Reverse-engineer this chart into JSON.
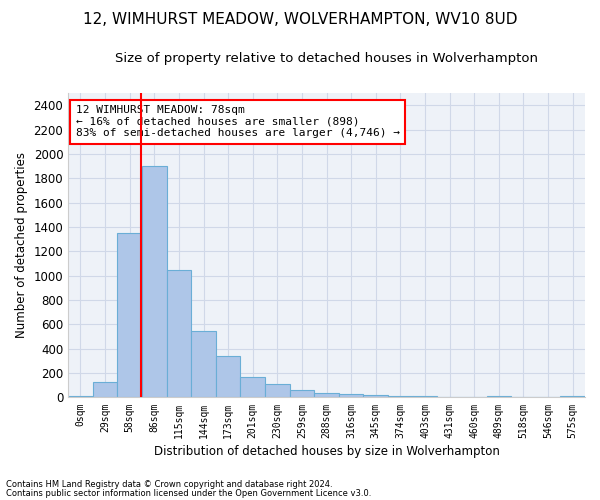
{
  "title": "12, WIMHURST MEADOW, WOLVERHAMPTON, WV10 8UD",
  "subtitle": "Size of property relative to detached houses in Wolverhampton",
  "xlabel": "Distribution of detached houses by size in Wolverhampton",
  "ylabel": "Number of detached properties",
  "footer_line1": "Contains HM Land Registry data © Crown copyright and database right 2024.",
  "footer_line2": "Contains public sector information licensed under the Open Government Licence v3.0.",
  "bar_labels": [
    "0sqm",
    "29sqm",
    "58sqm",
    "86sqm",
    "115sqm",
    "144sqm",
    "173sqm",
    "201sqm",
    "230sqm",
    "259sqm",
    "288sqm",
    "316sqm",
    "345sqm",
    "374sqm",
    "403sqm",
    "431sqm",
    "460sqm",
    "489sqm",
    "518sqm",
    "546sqm",
    "575sqm"
  ],
  "bar_values": [
    15,
    125,
    1350,
    1900,
    1045,
    545,
    340,
    170,
    110,
    62,
    38,
    28,
    22,
    15,
    8,
    0,
    0,
    15,
    0,
    0,
    15
  ],
  "bar_color": "#aec6e8",
  "bar_edgecolor": "#6aaed6",
  "grid_color": "#d0d8e8",
  "background_color": "#eef2f8",
  "red_line_x": 2.47,
  "annotation_text_line1": "12 WIMHURST MEADOW: 78sqm",
  "annotation_text_line2": "← 16% of detached houses are smaller (898)",
  "annotation_text_line3": "83% of semi-detached houses are larger (4,746) →",
  "ylim": [
    0,
    2500
  ],
  "yticks": [
    0,
    200,
    400,
    600,
    800,
    1000,
    1200,
    1400,
    1600,
    1800,
    2000,
    2200,
    2400
  ],
  "title_fontsize": 11,
  "subtitle_fontsize": 9.5,
  "annotation_box_edgecolor": "red",
  "red_line_color": "red"
}
